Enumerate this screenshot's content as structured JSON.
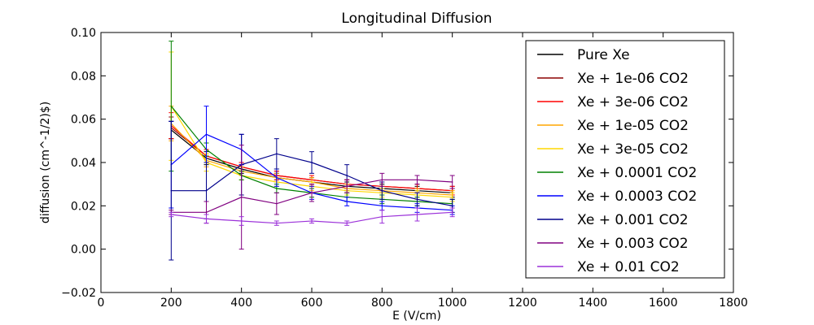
{
  "chart_data": {
    "type": "line",
    "title": "Longitudinal Diffusion",
    "xlabel": "E (V/cm)",
    "ylabel": "diffusion (cm^-1/2)$)",
    "xlim": [
      0,
      1800
    ],
    "ylim": [
      -0.02,
      0.1
    ],
    "xticks": [
      "0",
      "200",
      "400",
      "600",
      "800",
      "1000",
      "1200",
      "1400",
      "1600",
      "1800"
    ],
    "yticks": [
      "−0.02",
      "0.00",
      "0.02",
      "0.04",
      "0.06",
      "0.08",
      "0.10"
    ],
    "grid": false,
    "legend_position": "upper-right",
    "x": [
      200,
      300,
      400,
      500,
      600,
      700,
      800,
      900,
      1000
    ],
    "series": [
      {
        "name": "Pure Xe",
        "color": "#000000",
        "values": [
          0.055,
          0.042,
          0.037,
          0.033,
          0.031,
          0.029,
          0.028,
          0.027,
          0.026
        ],
        "errors": [
          0.004,
          0.003,
          0.002,
          0.002,
          0.002,
          0.002,
          0.002,
          0.002,
          0.002
        ]
      },
      {
        "name": "Xe + 1e-06 CO2",
        "color": "#8b0000",
        "values": [
          0.056,
          0.043,
          0.038,
          0.034,
          0.032,
          0.03,
          0.029,
          0.028,
          0.027
        ],
        "errors": [
          0.005,
          0.003,
          0.002,
          0.002,
          0.002,
          0.002,
          0.002,
          0.002,
          0.002
        ]
      },
      {
        "name": "Xe + 3e-06 CO2",
        "color": "#ff0000",
        "values": [
          0.057,
          0.043,
          0.038,
          0.034,
          0.032,
          0.03,
          0.029,
          0.028,
          0.027
        ],
        "errors": [
          0.006,
          0.003,
          0.002,
          0.002,
          0.002,
          0.002,
          0.002,
          0.002,
          0.002
        ]
      },
      {
        "name": "Xe + 1e-05 CO2",
        "color": "#ffa500",
        "values": [
          0.058,
          0.041,
          0.036,
          0.033,
          0.031,
          0.028,
          0.027,
          0.026,
          0.025
        ],
        "errors": [
          0.008,
          0.003,
          0.002,
          0.002,
          0.002,
          0.002,
          0.002,
          0.002,
          0.002
        ]
      },
      {
        "name": "Xe + 3e-05 CO2",
        "color": "#ffd700",
        "values": [
          0.066,
          0.04,
          0.034,
          0.031,
          0.029,
          0.027,
          0.026,
          0.025,
          0.024
        ],
        "errors": [
          0.025,
          0.004,
          0.002,
          0.002,
          0.002,
          0.002,
          0.002,
          0.002,
          0.002
        ]
      },
      {
        "name": "Xe + 0.0001 CO2",
        "color": "#008000",
        "values": [
          0.066,
          0.046,
          0.034,
          0.028,
          0.026,
          0.024,
          0.023,
          0.022,
          0.021
        ],
        "errors": [
          0.03,
          0.003,
          0.002,
          0.002,
          0.002,
          0.002,
          0.002,
          0.002,
          0.002
        ]
      },
      {
        "name": "Xe + 0.0003 CO2",
        "color": "#0000ff",
        "values": [
          0.039,
          0.053,
          0.046,
          0.033,
          0.026,
          0.022,
          0.02,
          0.019,
          0.018
        ],
        "errors": [
          0.02,
          0.013,
          0.007,
          0.004,
          0.003,
          0.002,
          0.002,
          0.002,
          0.002
        ]
      },
      {
        "name": "Xe + 0.001 CO2",
        "color": "#00008b",
        "values": [
          0.027,
          0.027,
          0.039,
          0.044,
          0.04,
          0.034,
          0.027,
          0.023,
          0.02
        ],
        "errors": [
          0.032,
          0.013,
          0.014,
          0.007,
          0.005,
          0.005,
          0.004,
          0.003,
          0.003
        ]
      },
      {
        "name": "Xe + 0.003 CO2",
        "color": "#800080",
        "values": [
          0.017,
          0.017,
          0.024,
          0.021,
          0.026,
          0.029,
          0.032,
          0.032,
          0.031
        ],
        "errors": [
          0.001,
          0.005,
          0.024,
          0.005,
          0.004,
          0.003,
          0.003,
          0.002,
          0.003
        ]
      },
      {
        "name": "Xe + 0.01 CO2",
        "color": "#9b30d9",
        "values": [
          0.016,
          0.014,
          0.013,
          0.012,
          0.013,
          0.012,
          0.015,
          0.016,
          0.017
        ],
        "errors": [
          0.001,
          0.002,
          0.002,
          0.001,
          0.001,
          0.001,
          0.003,
          0.003,
          0.002
        ]
      }
    ]
  }
}
